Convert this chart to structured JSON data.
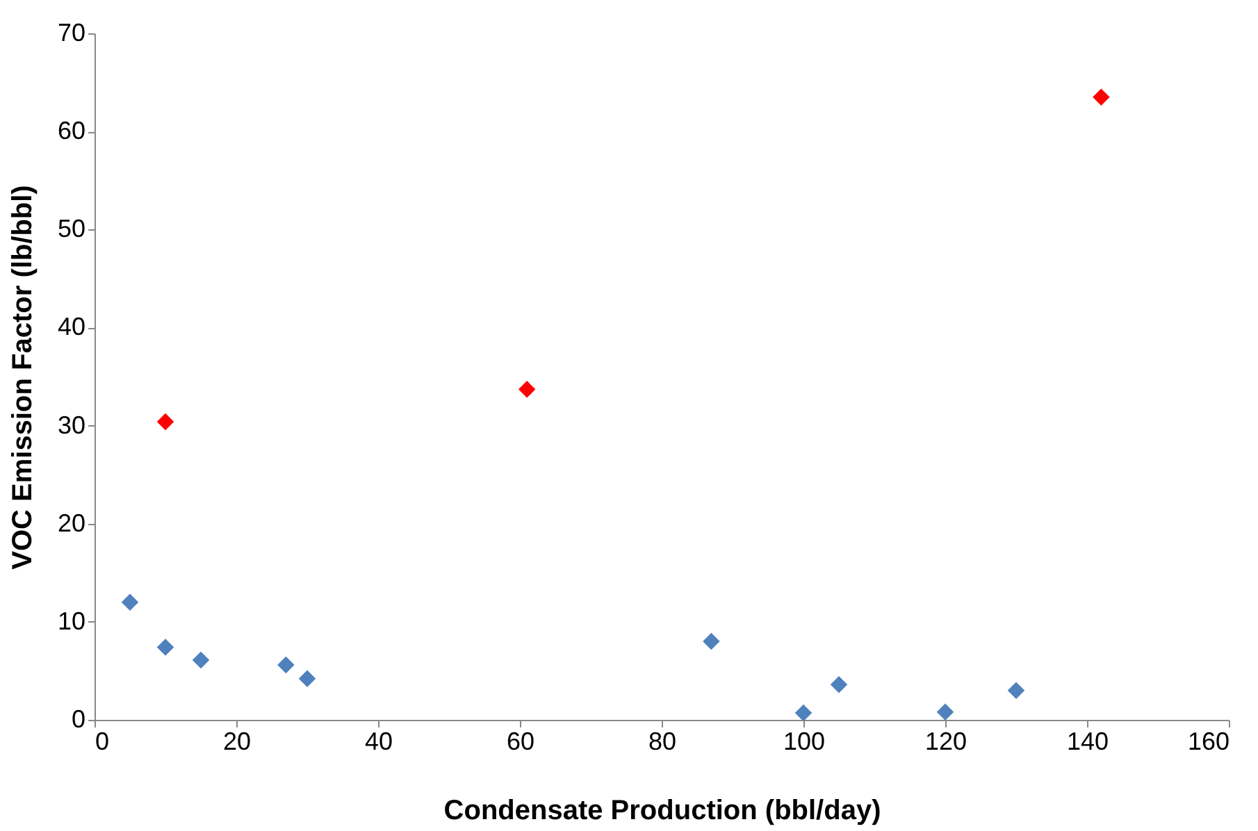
{
  "chart_data": {
    "type": "scatter",
    "xlabel": "Condensate Production (bbl/day)",
    "ylabel": "VOC Emission Factor (lb/bbl)",
    "xlim": [
      0,
      160
    ],
    "xticks": [
      0,
      20,
      40,
      60,
      80,
      100,
      120,
      140,
      160
    ],
    "ylim": [
      0,
      70
    ],
    "yticks": [
      0,
      10,
      20,
      30,
      40,
      50,
      60,
      70
    ],
    "grid": false,
    "legend": false,
    "marker": "diamond",
    "series": [
      {
        "color": "#4f81bd",
        "x": [
          5,
          10,
          15,
          27,
          30,
          87,
          100,
          105,
          120,
          130
        ],
        "values": [
          12,
          7.4,
          6.1,
          5.6,
          4.2,
          8,
          0.7,
          3.6,
          0.8,
          3
        ]
      },
      {
        "color": "#ff0000",
        "x": [
          10,
          61,
          142
        ],
        "values": [
          30.4,
          33.7,
          63.5
        ]
      }
    ]
  }
}
